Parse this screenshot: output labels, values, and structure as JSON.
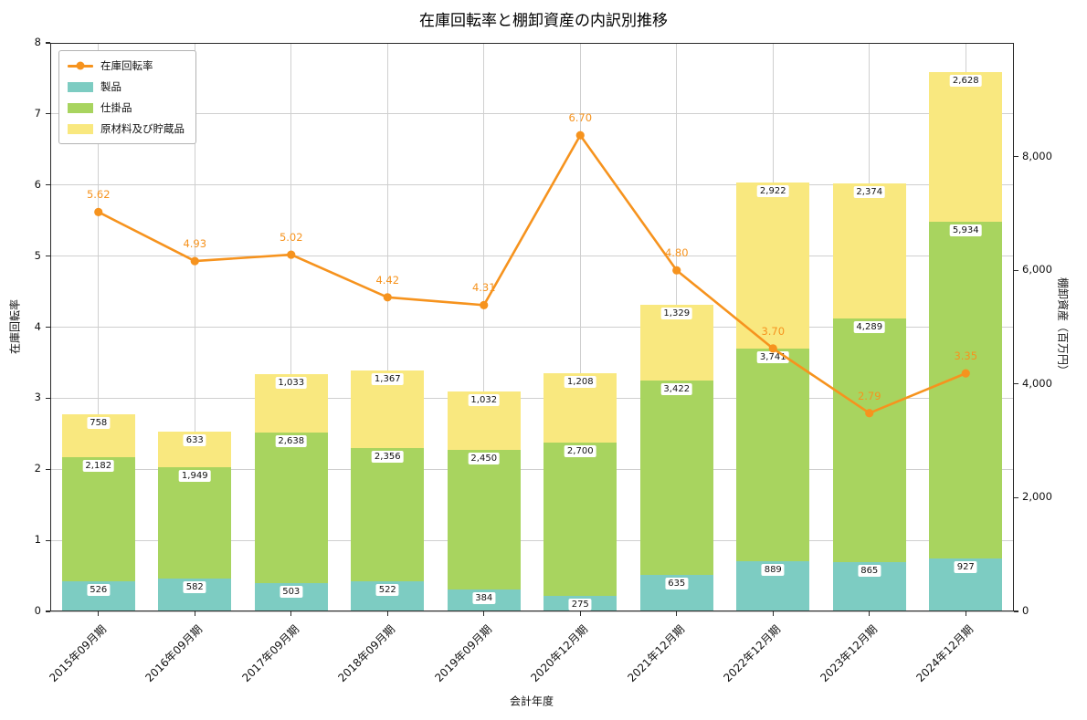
{
  "chart_data": {
    "type": "bar+line",
    "title": "在庫回転率と棚卸資産の内訳別推移",
    "xlabel": "会計年度",
    "categories": [
      "2015年09月期",
      "2016年09月期",
      "2017年09月期",
      "2018年09月期",
      "2019年09月期",
      "2020年12月期",
      "2021年12月期",
      "2022年12月期",
      "2023年12月期",
      "2024年12月期"
    ],
    "bar_series": [
      {
        "name": "製品",
        "color": "#7dccc2",
        "values": [
          526,
          582,
          503,
          522,
          384,
          275,
          635,
          889,
          865,
          927
        ]
      },
      {
        "name": "仕掛品",
        "color": "#a8d45f",
        "values": [
          2182,
          1949,
          2638,
          2356,
          2450,
          2700,
          3422,
          3741,
          4289,
          5934
        ]
      },
      {
        "name": "原材料及び貯蔵品",
        "color": "#f9e87f",
        "values": [
          758,
          633,
          1033,
          1367,
          1032,
          1208,
          1329,
          2922,
          2374,
          2628
        ]
      }
    ],
    "line_series": {
      "name": "在庫回転率",
      "color": "#f6931e",
      "values": [
        5.62,
        4.93,
        5.02,
        4.42,
        4.31,
        6.7,
        4.8,
        3.7,
        2.79,
        3.35
      ]
    },
    "left_axis": {
      "label": "在庫回転率",
      "min": 0,
      "max": 8,
      "ticks": [
        0,
        1,
        2,
        3,
        4,
        5,
        6,
        7,
        8
      ]
    },
    "right_axis": {
      "label": "棚卸資産（百万円）",
      "min": 0,
      "max": 10000,
      "ticks": [
        0,
        2000,
        4000,
        6000,
        8000
      ]
    },
    "legend_position": "upper left",
    "grid": true
  }
}
